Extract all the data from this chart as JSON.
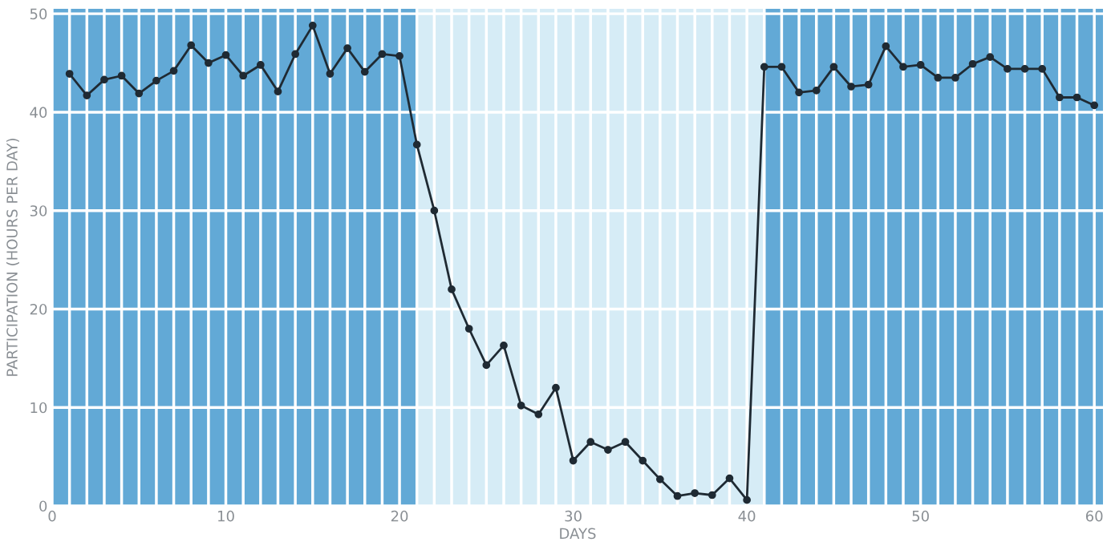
{
  "chart_data": {
    "type": "line",
    "xlabel": "DAYS",
    "ylabel": "PARTICIPATION (HOURS PER DAY)",
    "x": [
      1,
      2,
      3,
      4,
      5,
      6,
      7,
      8,
      9,
      10,
      11,
      12,
      13,
      14,
      15,
      16,
      17,
      18,
      19,
      20,
      21,
      22,
      23,
      24,
      25,
      26,
      27,
      28,
      29,
      30,
      31,
      32,
      33,
      34,
      35,
      36,
      37,
      38,
      39,
      40,
      41,
      42,
      43,
      44,
      45,
      46,
      47,
      48,
      49,
      50,
      51,
      52,
      53,
      54,
      55,
      56,
      57,
      58,
      59,
      60
    ],
    "series": [
      {
        "color": "#1f2a33",
        "values": [
          43.9,
          41.7,
          43.3,
          43.7,
          41.9,
          43.2,
          44.2,
          46.8,
          45.0,
          45.8,
          43.7,
          44.8,
          42.1,
          45.9,
          48.8,
          43.9,
          46.5,
          44.1,
          45.9,
          45.7,
          36.7,
          30.0,
          22.0,
          18.0,
          14.3,
          16.3,
          10.2,
          9.3,
          12.0,
          4.6,
          6.5,
          5.7,
          6.5,
          4.6,
          2.7,
          1.0,
          1.3,
          1.1,
          2.8,
          0.6,
          44.6,
          44.6,
          42.0,
          42.2,
          44.6,
          42.6,
          42.8,
          46.7,
          44.6,
          44.8,
          43.5,
          43.5,
          44.9,
          45.6,
          44.4,
          44.4,
          44.4,
          41.5,
          41.5,
          40.7
        ]
      }
    ],
    "marker": "circle",
    "line_style": "solid",
    "grid": true,
    "xlim": [
      0,
      60.5
    ],
    "ylim": [
      0,
      50.5
    ],
    "xticks": [
      0,
      10,
      20,
      30,
      40,
      50,
      60
    ],
    "yticks": [
      0,
      10,
      20,
      30,
      40,
      50
    ],
    "bands": [
      {
        "axis": "x",
        "from": 0,
        "to": 21,
        "color": "#62a9d6"
      },
      {
        "axis": "x",
        "from": 21,
        "to": 41,
        "color": "#d6ecf6"
      },
      {
        "axis": "x",
        "from": 41,
        "to": 60.5,
        "color": "#62a9d6"
      }
    ]
  }
}
